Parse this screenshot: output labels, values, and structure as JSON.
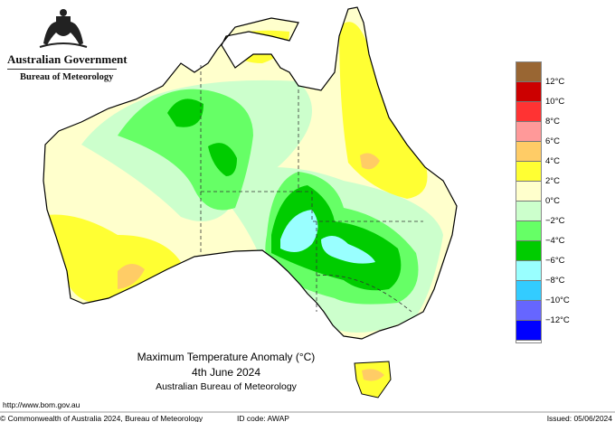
{
  "header": {
    "gov_name": "Australian Government",
    "agency": "Bureau of Meteorology"
  },
  "title": {
    "line1": "Maximum Temperature Anomaly (°C)",
    "line2": "4th June 2024",
    "line3": "Australian Bureau of Meteorology"
  },
  "footer": {
    "url": "http://www.bom.gov.au",
    "copyright": "© Commonwealth of Australia 2024, Bureau of Meteorology",
    "id_code": "ID code: AWAP",
    "issued": "Issued: 05/06/2024"
  },
  "legend": {
    "bands": [
      "#996633",
      "#cc0000",
      "#ff3333",
      "#ff9999",
      "#ffcc66",
      "#ffff33",
      "#ffffcc",
      "#ccffcc",
      "#66ff66",
      "#00cc00",
      "#99ffff",
      "#33ccff",
      "#6666ff",
      "#0000ff"
    ],
    "labels": [
      "12°C",
      "10°C",
      "8°C",
      "6°C",
      "4°C",
      "2°C",
      "0°C",
      "−2°C",
      "−4°C",
      "−6°C",
      "−8°C",
      "−10°C",
      "−12°C"
    ]
  }
}
